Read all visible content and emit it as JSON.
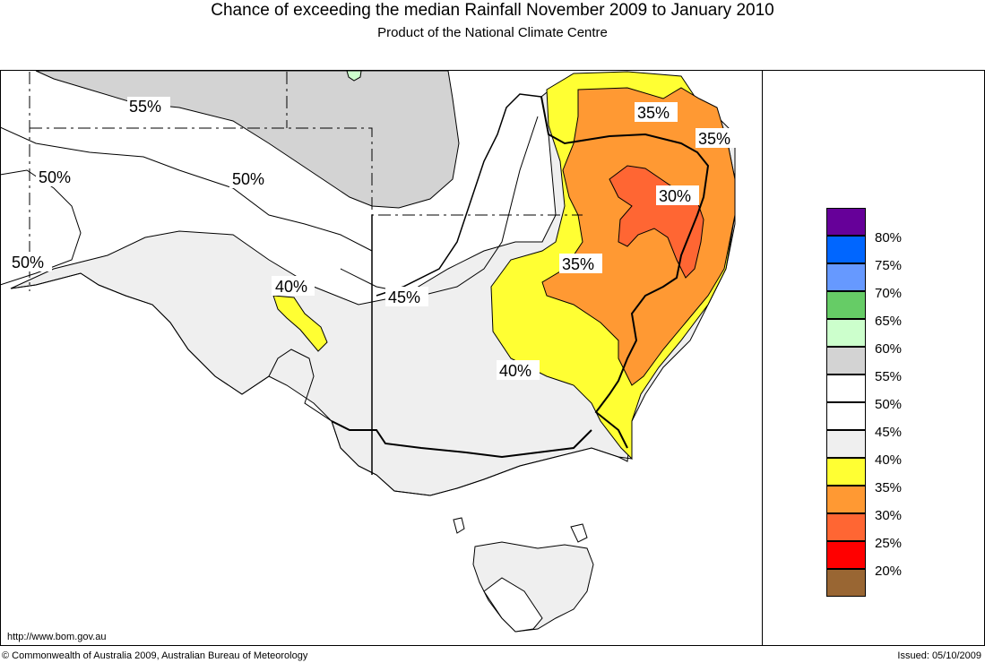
{
  "header": {
    "title": "Chance of exceeding the median Rainfall November 2009 to January 2010",
    "subtitle": "Product of the National Climate Centre"
  },
  "map": {
    "contour_labels": {
      "c55": "55%",
      "c50a": "50%",
      "c50b": "50%",
      "c50c": "50%",
      "c45": "45%",
      "c40a": "40%",
      "c40b": "40%",
      "c35a": "35%",
      "c35b": "35%",
      "c35c": "35%",
      "c30": "30%"
    },
    "colors": {
      "grey55": "#d3d3d3",
      "lightgrey45": "#efefef",
      "yellow40": "#ffff33",
      "orange35": "#ff9933",
      "darkorange30": "#ff6633",
      "green60": "#ccffcc"
    }
  },
  "legend": {
    "items": [
      {
        "label": "",
        "color": "#660099"
      },
      {
        "label": "80%",
        "color": "#0066ff"
      },
      {
        "label": "75%",
        "color": "#6699ff"
      },
      {
        "label": "70%",
        "color": "#66cc66"
      },
      {
        "label": "65%",
        "color": "#ccffcc"
      },
      {
        "label": "60%",
        "color": "#d3d3d3"
      },
      {
        "label": "55%",
        "color": "#ffffff"
      },
      {
        "label": "50%",
        "color": "#ffffff"
      },
      {
        "label": "45%",
        "color": "#efefef"
      },
      {
        "label": "40%",
        "color": "#ffff33"
      },
      {
        "label": "35%",
        "color": "#ff9933"
      },
      {
        "label": "30%",
        "color": "#ff6633"
      },
      {
        "label": "25%",
        "color": "#ff0000"
      },
      {
        "label": "20%",
        "color": "#996633"
      }
    ]
  },
  "footer": {
    "url": "http://www.bom.gov.au",
    "copyright": "© Commonwealth of Australia 2009, Australian Bureau of Meteorology",
    "issued": "Issued: 05/10/2009"
  }
}
